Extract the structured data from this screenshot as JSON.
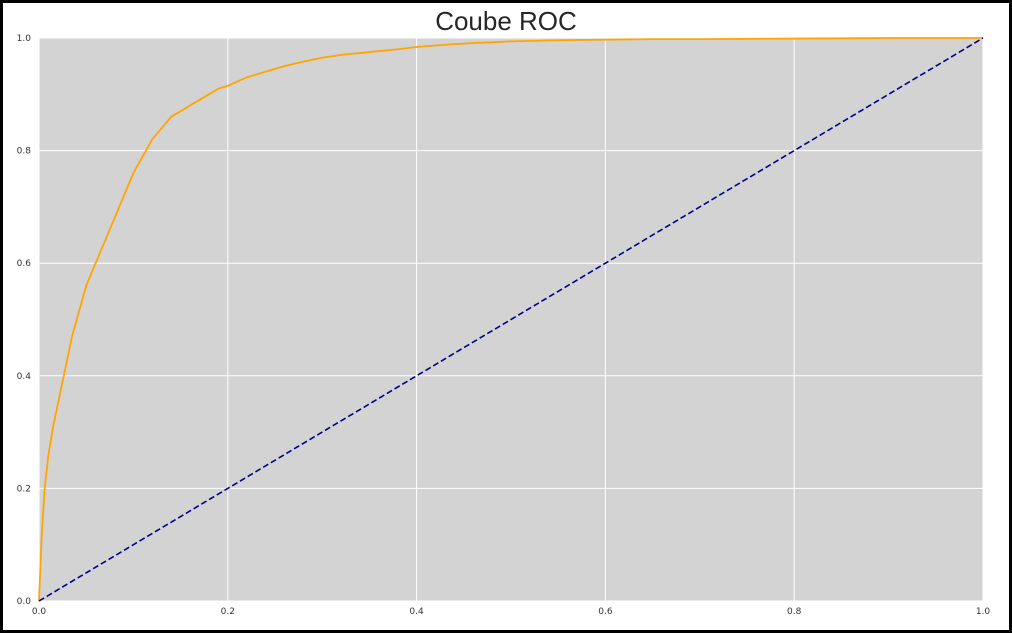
{
  "chart_data": {
    "type": "line",
    "title": "Coube ROC",
    "xlabel": "",
    "ylabel": "",
    "xlim": [
      0.0,
      1.0
    ],
    "ylim": [
      0.0,
      1.0
    ],
    "xticks": [
      "0.0",
      "0.2",
      "0.4",
      "0.6",
      "0.8",
      "1.0"
    ],
    "yticks": [
      "0.0",
      "0.2",
      "0.4",
      "0.6",
      "0.8",
      "1.0"
    ],
    "grid": true,
    "legend": "none",
    "background_color": "#d3d3d3",
    "series": [
      {
        "color": "#ffa500",
        "linestyle": "solid",
        "x": [
          0.0,
          0.003,
          0.006,
          0.01,
          0.015,
          0.02,
          0.025,
          0.03,
          0.035,
          0.04,
          0.045,
          0.05,
          0.055,
          0.06,
          0.065,
          0.07,
          0.075,
          0.08,
          0.09,
          0.1,
          0.11,
          0.12,
          0.13,
          0.14,
          0.15,
          0.16,
          0.17,
          0.18,
          0.19,
          0.2,
          0.22,
          0.24,
          0.26,
          0.28,
          0.3,
          0.32,
          0.35,
          0.38,
          0.4,
          0.43,
          0.46,
          0.5,
          0.55,
          0.6,
          0.65,
          0.7,
          0.8,
          0.9,
          1.0
        ],
        "y": [
          0.0,
          0.12,
          0.2,
          0.26,
          0.31,
          0.35,
          0.39,
          0.43,
          0.47,
          0.5,
          0.53,
          0.56,
          0.58,
          0.6,
          0.62,
          0.64,
          0.66,
          0.68,
          0.72,
          0.76,
          0.79,
          0.82,
          0.84,
          0.86,
          0.87,
          0.88,
          0.89,
          0.9,
          0.91,
          0.915,
          0.93,
          0.94,
          0.95,
          0.958,
          0.965,
          0.97,
          0.975,
          0.98,
          0.984,
          0.988,
          0.991,
          0.994,
          0.996,
          0.997,
          0.998,
          0.998,
          0.999,
          1.0,
          1.0
        ]
      },
      {
        "color": "#00008b",
        "linestyle": "dashed",
        "x": [
          0.0,
          1.0
        ],
        "y": [
          0.0,
          1.0
        ]
      }
    ]
  }
}
